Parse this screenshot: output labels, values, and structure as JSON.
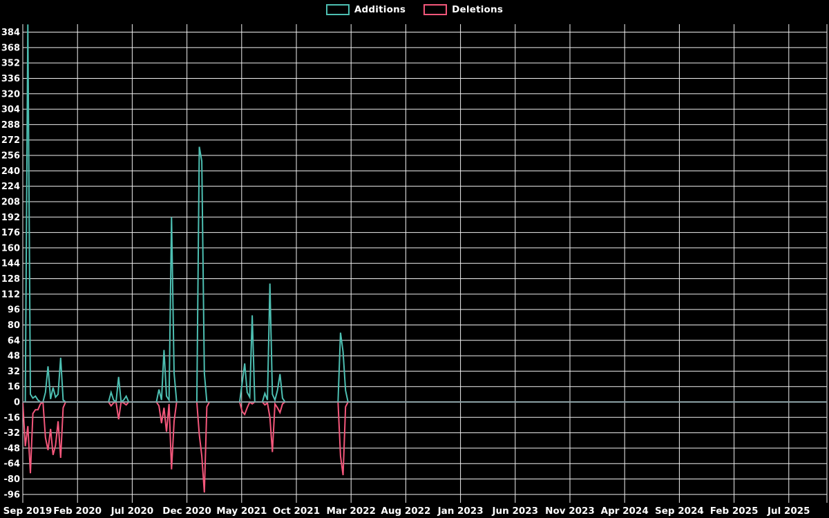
{
  "legend": {
    "items": [
      {
        "label": "Additions",
        "color": "#4DBFB2"
      },
      {
        "label": "Deletions",
        "color": "#F4577B"
      }
    ]
  },
  "colors": {
    "background": "#000000",
    "grid": "#F2F2F2",
    "zero_line": "#8CA2A6",
    "text": "#FFFFFF",
    "additions": "#4DBFB2",
    "deletions": "#F4577B"
  },
  "chart_data": {
    "type": "line",
    "title": "",
    "xlabel": "",
    "ylabel": "",
    "grid": true,
    "legend_position": "top-center",
    "x_axis": {
      "unit": "week",
      "total_weeks": 319,
      "weeks_per_tick": 21.7,
      "tick_labels": [
        "Sep 2019",
        "Feb 2020",
        "Jul 2020",
        "Dec 2020",
        "May 2021",
        "Oct 2021",
        "Mar 2022",
        "Aug 2022",
        "Jan 2023",
        "Jun 2023",
        "Nov 2023",
        "Apr 2024",
        "Sep 2024",
        "Feb 2025",
        "Jul 2025"
      ]
    },
    "y_axis": {
      "min": -96,
      "max": 384,
      "step": 16,
      "tick_labels": [
        "384",
        "368",
        "352",
        "336",
        "320",
        "304",
        "288",
        "272",
        "256",
        "240",
        "224",
        "208",
        "192",
        "176",
        "160",
        "144",
        "128",
        "112",
        "96",
        "80",
        "64",
        "48",
        "32",
        "16",
        "0",
        "-16",
        "-32",
        "-48",
        "-64",
        "-80",
        "-96"
      ]
    },
    "series": [
      {
        "name": "Additions",
        "color": "#4DBFB2",
        "points": [
          [
            0,
            0
          ],
          [
            1,
            0
          ],
          [
            2,
            392
          ],
          [
            3,
            8
          ],
          [
            4,
            4
          ],
          [
            5,
            6
          ],
          [
            6,
            2
          ],
          [
            7,
            0
          ],
          [
            8,
            0
          ],
          [
            9,
            10
          ],
          [
            10,
            37
          ],
          [
            11,
            3
          ],
          [
            12,
            15
          ],
          [
            13,
            5
          ],
          [
            14,
            8
          ],
          [
            15,
            46
          ],
          [
            16,
            2
          ],
          [
            17,
            0
          ],
          [
            34,
            0
          ],
          [
            35,
            10
          ],
          [
            36,
            2
          ],
          [
            37,
            0
          ],
          [
            38,
            26
          ],
          [
            39,
            0
          ],
          [
            40,
            2
          ],
          [
            41,
            6
          ],
          [
            42,
            0
          ],
          [
            53,
            0
          ],
          [
            54,
            13
          ],
          [
            55,
            2
          ],
          [
            56,
            54
          ],
          [
            57,
            6
          ],
          [
            58,
            2
          ],
          [
            59,
            192
          ],
          [
            60,
            30
          ],
          [
            61,
            0
          ],
          [
            69,
            0
          ],
          [
            70,
            265
          ],
          [
            71,
            250
          ],
          [
            72,
            30
          ],
          [
            73,
            0
          ],
          [
            86,
            0
          ],
          [
            87,
            20
          ],
          [
            88,
            40
          ],
          [
            89,
            10
          ],
          [
            90,
            5
          ],
          [
            91,
            90
          ],
          [
            92,
            0
          ],
          [
            95,
            0
          ],
          [
            96,
            9
          ],
          [
            97,
            2
          ],
          [
            98,
            123
          ],
          [
            99,
            8
          ],
          [
            100,
            2
          ],
          [
            101,
            12
          ],
          [
            102,
            29
          ],
          [
            103,
            4
          ],
          [
            104,
            0
          ],
          [
            125,
            0
          ],
          [
            126,
            72
          ],
          [
            127,
            52
          ],
          [
            128,
            12
          ],
          [
            129,
            0
          ],
          [
            318,
            0
          ]
        ]
      },
      {
        "name": "Deletions",
        "color": "#F4577B",
        "points": [
          [
            0,
            0
          ],
          [
            1,
            -46
          ],
          [
            2,
            -25
          ],
          [
            3,
            -74
          ],
          [
            4,
            -12
          ],
          [
            5,
            -8
          ],
          [
            6,
            -8
          ],
          [
            7,
            -2
          ],
          [
            8,
            0
          ],
          [
            9,
            -37
          ],
          [
            10,
            -50
          ],
          [
            11,
            -28
          ],
          [
            12,
            -55
          ],
          [
            13,
            -45
          ],
          [
            14,
            -20
          ],
          [
            15,
            -58
          ],
          [
            16,
            -6
          ],
          [
            17,
            0
          ],
          [
            34,
            0
          ],
          [
            35,
            -4
          ],
          [
            36,
            -1
          ],
          [
            37,
            0
          ],
          [
            38,
            -18
          ],
          [
            39,
            0
          ],
          [
            40,
            -1
          ],
          [
            41,
            -3
          ],
          [
            42,
            0
          ],
          [
            53,
            0
          ],
          [
            54,
            -4
          ],
          [
            55,
            -22
          ],
          [
            56,
            -6
          ],
          [
            57,
            -31
          ],
          [
            58,
            -2
          ],
          [
            59,
            -70
          ],
          [
            60,
            -20
          ],
          [
            61,
            0
          ],
          [
            69,
            0
          ],
          [
            70,
            -34
          ],
          [
            71,
            -56
          ],
          [
            72,
            -94
          ],
          [
            73,
            -5
          ],
          [
            74,
            0
          ],
          [
            86,
            0
          ],
          [
            87,
            -10
          ],
          [
            88,
            -13
          ],
          [
            89,
            -6
          ],
          [
            90,
            0
          ],
          [
            91,
            -2
          ],
          [
            92,
            0
          ],
          [
            95,
            0
          ],
          [
            96,
            -3
          ],
          [
            97,
            -1
          ],
          [
            98,
            -16
          ],
          [
            99,
            -52
          ],
          [
            100,
            -2
          ],
          [
            101,
            -6
          ],
          [
            102,
            -11
          ],
          [
            103,
            -2
          ],
          [
            104,
            0
          ],
          [
            125,
            0
          ],
          [
            126,
            -56
          ],
          [
            127,
            -76
          ],
          [
            128,
            -5
          ],
          [
            129,
            0
          ],
          [
            318,
            0
          ]
        ]
      }
    ]
  }
}
